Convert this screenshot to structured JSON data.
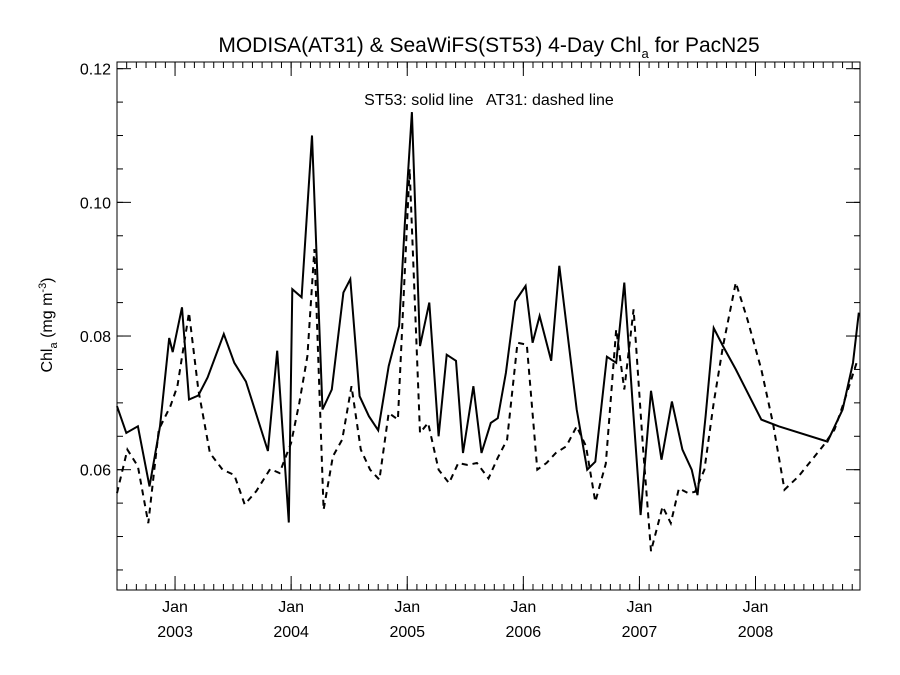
{
  "chart_data": {
    "type": "line",
    "title_main": "MODISA(AT31) & SeaWiFS(ST53) 4-Day Chl",
    "title_sub": "a",
    "title_end": " for PacN25",
    "annotation": "ST53: solid line   AT31: dashed line",
    "ylabel_main": "Chl",
    "ylabel_sub": "a",
    "ylabel_units": " (mg m",
    "ylabel_sup": "-3",
    "ylabel_close": ")",
    "xlim": [
      2002.5,
      2008.9
    ],
    "ylim": [
      0.042,
      0.121
    ],
    "y_major_ticks": [
      0.06,
      0.08,
      0.1,
      0.12
    ],
    "y_tick_labels": [
      "0.06",
      "0.08",
      "0.10",
      "0.12"
    ],
    "y_minor_step": 0.005,
    "x_ticks": [
      {
        "x": 2003,
        "month": "Jan",
        "year": "2003"
      },
      {
        "x": 2004,
        "month": "Jan",
        "year": "2004"
      },
      {
        "x": 2005,
        "month": "Jan",
        "year": "2005"
      },
      {
        "x": 2006,
        "month": "Jan",
        "year": "2006"
      },
      {
        "x": 2007,
        "month": "Jan",
        "year": "2007"
      },
      {
        "x": 2008,
        "month": "Jan",
        "year": "2008"
      }
    ],
    "x_minor_step": 0.08333,
    "series": [
      {
        "name": "ST53",
        "style": "solid",
        "color": "#000000",
        "x": [
          2002.5,
          2002.58,
          2002.68,
          2002.78,
          2002.87,
          2002.95,
          2002.98,
          2003.06,
          2003.12,
          2003.2,
          2003.28,
          2003.42,
          2003.51,
          2003.61,
          2003.8,
          2003.88,
          2003.98,
          2004.01,
          2004.09,
          2004.18,
          2004.27,
          2004.35,
          2004.45,
          2004.51,
          2004.59,
          2004.67,
          2004.75,
          2004.84,
          2004.93,
          2004.98,
          2005.04,
          2005.11,
          2005.19,
          2005.27,
          2005.34,
          2005.42,
          2005.48,
          2005.57,
          2005.64,
          2005.72,
          2005.78,
          2005.85,
          2005.93,
          2006.02,
          2006.08,
          2006.14,
          2006.24,
          2006.31,
          2006.39,
          2006.46,
          2006.55,
          2006.62,
          2006.72,
          2006.8,
          2006.87,
          2006.94,
          2007.01,
          2007.1,
          2007.19,
          2007.28,
          2007.37,
          2007.45,
          2007.5,
          2007.57,
          2007.64,
          2007.72,
          2007.83,
          2008.05,
          2008.2,
          2008.62,
          2008.75,
          2008.84,
          2008.89
        ],
        "y": [
          0.0695,
          0.0655,
          0.0665,
          0.0575,
          0.0665,
          0.0797,
          0.0776,
          0.0843,
          0.0705,
          0.0711,
          0.0738,
          0.0803,
          0.076,
          0.0732,
          0.0628,
          0.0778,
          0.0521,
          0.087,
          0.0858,
          0.11,
          0.069,
          0.072,
          0.0865,
          0.0885,
          0.071,
          0.068,
          0.0659,
          0.0755,
          0.0815,
          0.097,
          0.1135,
          0.0785,
          0.085,
          0.065,
          0.0772,
          0.0763,
          0.0625,
          0.0725,
          0.0625,
          0.067,
          0.0677,
          0.0745,
          0.0852,
          0.0875,
          0.079,
          0.083,
          0.0763,
          0.0905,
          0.079,
          0.069,
          0.06,
          0.0612,
          0.0769,
          0.076,
          0.088,
          0.0702,
          0.0532,
          0.0718,
          0.0615,
          0.0702,
          0.063,
          0.06,
          0.0562,
          0.068,
          0.0812,
          0.0785,
          0.075,
          0.0675,
          0.0665,
          0.0642,
          0.069,
          0.076,
          0.0835
        ]
      },
      {
        "name": "AT31",
        "style": "dashed",
        "color": "#000000",
        "x": [
          2002.5,
          2002.59,
          2002.68,
          2002.77,
          2002.86,
          2002.96,
          2003.02,
          2003.12,
          2003.2,
          2003.3,
          2003.41,
          2003.51,
          2003.6,
          2003.7,
          2003.82,
          2003.9,
          2004.0,
          2004.07,
          2004.14,
          2004.2,
          2004.28,
          2004.36,
          2004.44,
          2004.52,
          2004.6,
          2004.68,
          2004.76,
          2004.84,
          2004.92,
          2005.02,
          2005.11,
          2005.18,
          2005.27,
          2005.36,
          2005.44,
          2005.52,
          2005.6,
          2005.7,
          2005.78,
          2005.86,
          2005.95,
          2006.03,
          2006.12,
          2006.2,
          2006.28,
          2006.37,
          2006.46,
          2006.54,
          2006.62,
          2006.71,
          2006.8,
          2006.87,
          2006.95,
          2007.03,
          2007.1,
          2007.2,
          2007.27,
          2007.34,
          2007.42,
          2007.48,
          2007.56,
          2007.64,
          2007.72,
          2007.83,
          2007.93,
          2008.05,
          2008.15,
          2008.25,
          2008.37,
          2008.58,
          2008.68,
          2008.76,
          2008.88
        ],
        "y": [
          0.0565,
          0.063,
          0.0605,
          0.052,
          0.066,
          0.0695,
          0.0725,
          0.0835,
          0.072,
          0.0625,
          0.06,
          0.0592,
          0.0548,
          0.0568,
          0.0601,
          0.0595,
          0.064,
          0.07,
          0.077,
          0.093,
          0.054,
          0.062,
          0.0645,
          0.0725,
          0.063,
          0.06,
          0.0585,
          0.0685,
          0.0675,
          0.105,
          0.0655,
          0.067,
          0.06,
          0.058,
          0.061,
          0.0607,
          0.061,
          0.0587,
          0.0618,
          0.0645,
          0.079,
          0.0787,
          0.06,
          0.061,
          0.0625,
          0.0635,
          0.0665,
          0.0635,
          0.0552,
          0.0609,
          0.081,
          0.072,
          0.084,
          0.0635,
          0.0478,
          0.0545,
          0.052,
          0.0572,
          0.0565,
          0.0567,
          0.06,
          0.07,
          0.0785,
          0.088,
          0.0825,
          0.075,
          0.067,
          0.057,
          0.059,
          0.0635,
          0.066,
          0.07,
          0.0765
        ]
      }
    ]
  }
}
